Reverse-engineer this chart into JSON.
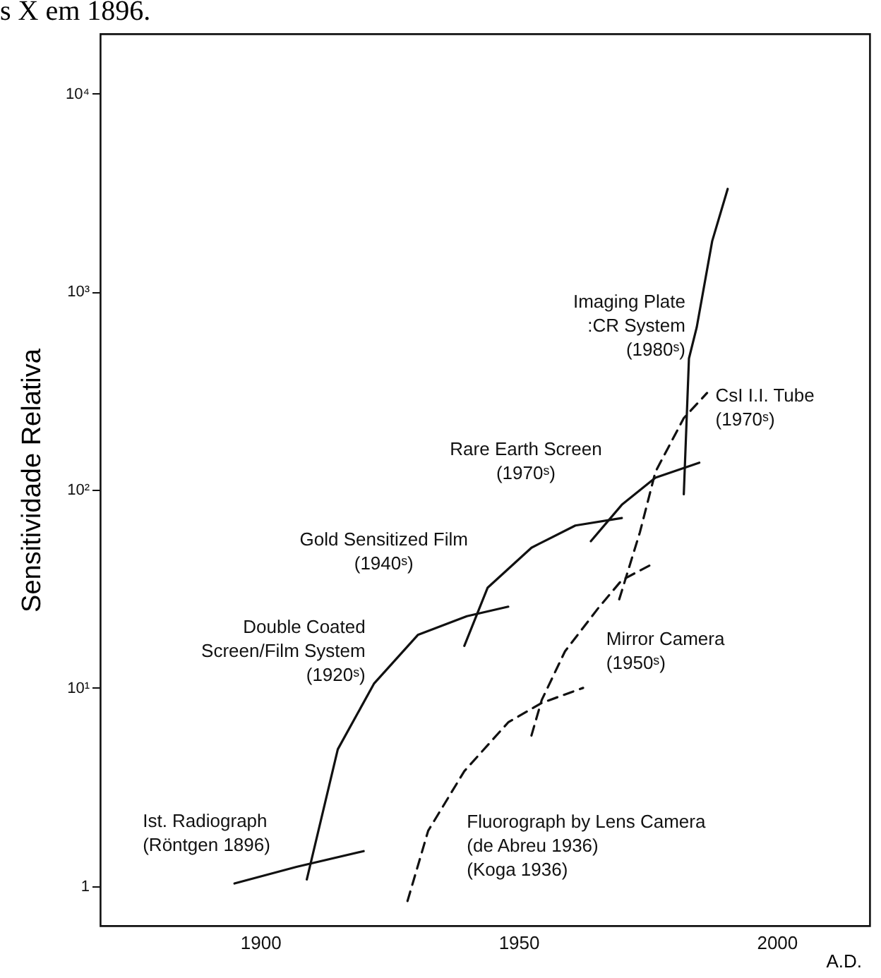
{
  "chart_data": {
    "type": "line",
    "ylabel": "Sensitividade Relativa",
    "xlabel": "A.D.",
    "annotations": [
      "s X em 1896."
    ],
    "log": "y",
    "grid": false,
    "legend": false,
    "marker": "none",
    "xlim": [
      1869,
      2018
    ],
    "xticks": [
      1900,
      1950,
      2000
    ],
    "ylim": [
      0.63,
      20000
    ],
    "yticks": [
      1,
      {
        "value": 10,
        "label": "10¹"
      },
      {
        "value": 100,
        "label": "10²"
      },
      {
        "value": 1000,
        "label": "10³"
      },
      {
        "value": 10000,
        "label": "10⁴"
      }
    ],
    "series": [
      {
        "name": "Ist. Radiograph\n(Röntgen 1896)",
        "color": "#111111",
        "line_style": "solid",
        "x": [
          1895,
          1907,
          1920
        ],
        "values": [
          1.03,
          1.25,
          1.5
        ]
      },
      {
        "name": "Double Coated\nScreen/Film System\n(1920ˢ)",
        "color": "#111111",
        "line_style": "solid",
        "x": [
          1909,
          1915,
          1922,
          1930.5,
          1940,
          1948
        ],
        "values": [
          1.08,
          4.9,
          10.5,
          18.5,
          23,
          25.7
        ]
      },
      {
        "name": "Gold Sensitized Film\n(1940ˢ)",
        "color": "#111111",
        "line_style": "solid",
        "x": [
          1939.5,
          1944,
          1952.5,
          1961,
          1970
        ],
        "values": [
          16.3,
          32,
          51,
          66,
          72
        ]
      },
      {
        "name": "Rare Earth Screen\n(1970ˢ)",
        "color": "#111111",
        "line_style": "solid",
        "x": [
          1964,
          1970,
          1976.5,
          1985
        ],
        "values": [
          55,
          84,
          115,
          137
        ]
      },
      {
        "name": "Imaging Plate\n:CR System\n(1980ˢ)",
        "color": "#111111",
        "line_style": "solid",
        "x": [
          1982,
          1983,
          1984.5,
          1987.5,
          1990.5
        ],
        "values": [
          95,
          460,
          660,
          1800,
          3300
        ]
      },
      {
        "name": "CsI I.I. Tube\n(1970ˢ)",
        "color": "#111111",
        "line_style": "dashed",
        "x": [
          1969.5,
          1973.5,
          1976.5,
          1982,
          1986.5
        ],
        "values": [
          28,
          61,
          123,
          230,
          308
        ]
      },
      {
        "name": "Mirror Camera\n(1950ˢ)",
        "color": "#111111",
        "line_style": "dashed",
        "x": [
          1952.5,
          1954.5,
          1959,
          1965.5,
          1970,
          1976.5
        ],
        "values": [
          5.75,
          8.7,
          15.3,
          25.4,
          35,
          43
        ]
      },
      {
        "name": "Fluorograph by Lens Camera\n   (de Abreu 1936)\n   (Koga       1936)",
        "color": "#111111",
        "line_style": "dashed",
        "x": [
          1928.5,
          1932.5,
          1939.5,
          1948,
          1954.5,
          1962.5
        ],
        "values": [
          0.84,
          1.9,
          3.8,
          6.7,
          8.4,
          10
        ]
      }
    ]
  }
}
